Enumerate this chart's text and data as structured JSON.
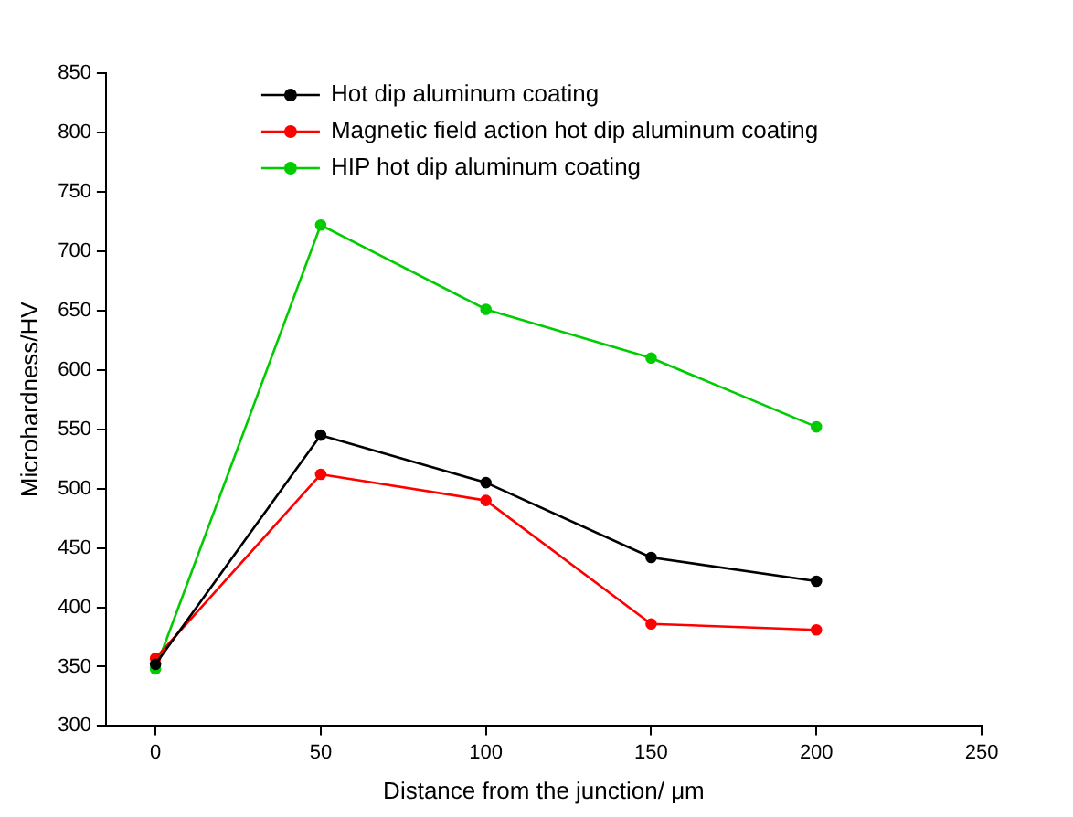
{
  "chart_data": {
    "type": "line",
    "xlabel": "Distance from the junction/ μm",
    "ylabel": "Microhardness/HV",
    "x": [
      0,
      50,
      100,
      150,
      200
    ],
    "series": [
      {
        "name": "Hot dip aluminum coating",
        "color": "#000000",
        "values": [
          352,
          545,
          505,
          442,
          422
        ]
      },
      {
        "name": "Magnetic field action hot dip aluminum coating",
        "color": "#ff0000",
        "values": [
          357,
          512,
          490,
          386,
          381
        ]
      },
      {
        "name": "HIP hot dip aluminum coating",
        "color": "#00cc00",
        "values": [
          348,
          722,
          651,
          610,
          552
        ]
      }
    ],
    "xlim": [
      -15,
      250
    ],
    "xticks": [
      0,
      50,
      100,
      150,
      200,
      250
    ],
    "ylim": [
      300,
      850
    ],
    "yticks": [
      300,
      350,
      400,
      450,
      500,
      550,
      600,
      650,
      700,
      750,
      800,
      850
    ],
    "grid": false,
    "legend": "top",
    "marker": "circle",
    "line_style": "solid"
  }
}
